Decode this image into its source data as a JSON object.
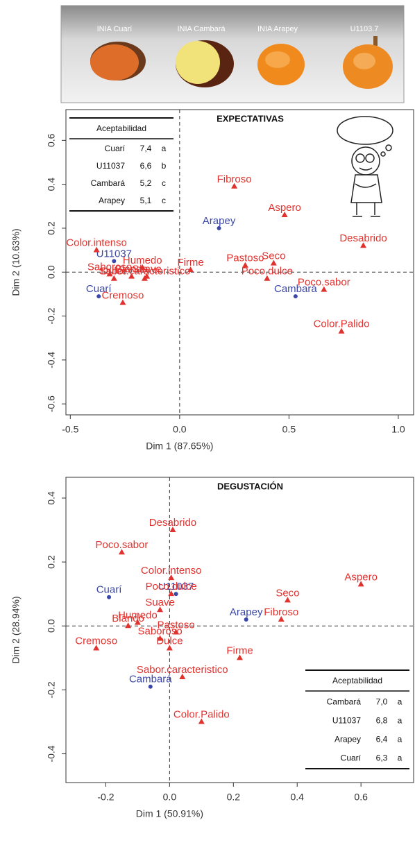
{
  "image_strip": {
    "labels": [
      "INIA Cuarí",
      "INIA Cambará",
      "INIA Arapey",
      "U1103.7"
    ]
  },
  "chart_data": [
    {
      "type": "scatter",
      "title": "EXPECTATIVAS",
      "x_label": "Dim 1 (87.65%)",
      "y_label": "Dim 2 (10.63%)",
      "xlim": [
        -0.52,
        1.07
      ],
      "ylim": [
        -0.65,
        0.74
      ],
      "xticks": [
        -0.5,
        {
          "value": 0,
          "label": "0.0"
        },
        0.5,
        {
          "value": 1,
          "label": "1.0"
        }
      ],
      "yticks": [
        0.6,
        0.4,
        0.2,
        {
          "value": 0,
          "label": "0.0"
        },
        -0.2,
        -0.4,
        -0.6
      ],
      "series": [
        {
          "color": "#3a46a8",
          "marker": "circle",
          "labels": [
            "U11037",
            "Cuarí",
            "Arapey",
            "Cambará"
          ],
          "x": [
            -0.3,
            -0.37,
            0.18,
            0.53
          ],
          "values": [
            0.05,
            -0.11,
            0.2,
            -0.11
          ]
        },
        {
          "color": "#e0322e",
          "marker": "triangle",
          "labels": [
            "Color.intenso",
            "Saboroso",
            "Dulce",
            "Blando",
            "Suave",
            "Humedo",
            "Sabor.caracteristico",
            "Cremoso",
            "Firme",
            "Pastoso",
            "Seco",
            "Poco.dulce",
            "Poco.sabor",
            "Color.Palido",
            "Desabrido",
            "Aspero",
            "Fibroso"
          ],
          "x": [
            -0.38,
            -0.32,
            -0.3,
            -0.22,
            -0.15,
            -0.17,
            -0.16,
            -0.26,
            0.05,
            0.3,
            0.43,
            0.4,
            0.66,
            0.74,
            0.84,
            0.48,
            0.25
          ],
          "values": [
            0.1,
            -0.01,
            -0.03,
            -0.02,
            -0.02,
            0.02,
            -0.03,
            -0.14,
            0.01,
            0.03,
            0.04,
            -0.03,
            -0.08,
            -0.27,
            0.12,
            0.26,
            0.39
          ]
        }
      ],
      "table_position": "top-left",
      "table": {
        "header": "Aceptabilidad",
        "rows": [
          [
            "Cuarí",
            "7,4",
            "a"
          ],
          [
            "U11037",
            "6,6",
            "b"
          ],
          [
            "Cambará",
            "5,2",
            "c"
          ],
          [
            "Arapey",
            "5,1",
            "c"
          ]
        ]
      }
    },
    {
      "type": "scatter",
      "title": "DEGUSTACIÓN",
      "x_label": "Dim 1 (50.91%)",
      "y_label": "Dim 2 (28.94%)",
      "xlim": [
        -0.325,
        0.765
      ],
      "ylim": [
        -0.49,
        0.465
      ],
      "xticks": [
        -0.2,
        {
          "value": 0,
          "label": "0.0"
        },
        0.2,
        0.4,
        0.6
      ],
      "yticks": [
        0.4,
        0.2,
        {
          "value": 0,
          "label": "0.0"
        },
        -0.2,
        -0.4
      ],
      "series": [
        {
          "color": "#3a46a8",
          "marker": "circle",
          "labels": [
            "U11037",
            "Cuarí",
            "Arapey",
            "Cambará"
          ],
          "x": [
            0.02,
            -0.19,
            0.24,
            -0.06
          ],
          "values": [
            0.1,
            0.09,
            0.02,
            -0.19
          ]
        },
        {
          "color": "#e0322e",
          "marker": "triangle",
          "labels": [
            "Desabrido",
            "Poco.sabor",
            "Color.intenso",
            "Poco.dulce",
            "Suave",
            "Humedo",
            "Blando",
            "Saboroso",
            "Pastoso",
            "Dulce",
            "Cremoso",
            "Firme",
            "Sabor.caracteristico",
            "Color.Palido",
            "Seco",
            "Fibroso",
            "Aspero"
          ],
          "x": [
            0.01,
            -0.15,
            0.005,
            0.005,
            -0.03,
            -0.1,
            -0.13,
            -0.03,
            0.02,
            0.0,
            -0.23,
            0.22,
            0.04,
            0.1,
            0.37,
            0.35,
            0.6
          ],
          "values": [
            0.3,
            0.23,
            0.15,
            0.1,
            0.05,
            0.01,
            0.0,
            -0.04,
            -0.02,
            -0.07,
            -0.07,
            -0.1,
            -0.16,
            -0.3,
            0.08,
            0.02,
            0.13
          ]
        }
      ],
      "table_position": "bottom-right",
      "table": {
        "header": "Aceptabilidad",
        "rows": [
          [
            "Cambará",
            "7,0",
            "a"
          ],
          [
            "U11037",
            "6,8",
            "a"
          ],
          [
            "Arapey",
            "6,4",
            "a"
          ],
          [
            "Cuarí",
            "6,3",
            "a"
          ]
        ]
      }
    }
  ]
}
